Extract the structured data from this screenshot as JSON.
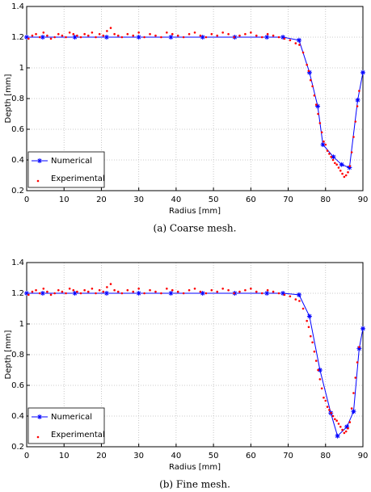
{
  "chart_data": [
    {
      "type": "line",
      "caption": "(a) Coarse mesh.",
      "xlabel": "Radius [mm]",
      "ylabel": "Depth [mm]",
      "xlim": [
        0,
        90
      ],
      "ylim": [
        0.2,
        1.4
      ],
      "xticks": [
        0,
        10,
        20,
        30,
        40,
        50,
        60,
        70,
        80,
        90
      ],
      "yticks": [
        0.2,
        0.4,
        0.6,
        0.8,
        1,
        1.2,
        1.4
      ],
      "grid": true,
      "legend": "lower left",
      "series": [
        {
          "name": "Numerical",
          "color": "#0000ff",
          "x": [
            0,
            4.3,
            12.9,
            21.4,
            30,
            38.6,
            47.1,
            55.7,
            64.3,
            68.6,
            72.9,
            75.7,
            77.9,
            79.3,
            82.1,
            84.3,
            86.4,
            88.6,
            90
          ],
          "values": [
            1.2,
            1.2,
            1.2,
            1.2,
            1.2,
            1.2,
            1.2,
            1.2,
            1.2,
            1.2,
            1.18,
            0.97,
            0.75,
            0.5,
            0.42,
            0.37,
            0.35,
            0.79,
            0.97
          ]
        },
        {
          "name": "Experimental",
          "color": "#ff0000",
          "style": "points",
          "x": [
            0.5,
            1.5,
            2.5,
            3.5,
            4.5,
            5.5,
            6.5,
            7.5,
            8.5,
            9.5,
            10.5,
            11.5,
            12.5,
            13.5,
            14.5,
            15.5,
            16.5,
            17.5,
            18.5,
            19.5,
            20.5,
            21.5,
            22.5,
            23.5,
            24.5,
            25.5,
            27,
            28.5,
            30,
            31.5,
            33,
            34.5,
            36,
            37.5,
            39,
            40.5,
            42,
            43.5,
            45,
            46.5,
            48,
            49.5,
            51,
            52.5,
            54,
            55.5,
            57,
            58.5,
            60,
            61.5,
            63,
            64.5,
            66,
            67.5,
            69,
            70.5,
            72,
            73,
            74,
            75,
            75.5,
            76,
            76.5,
            77,
            77.5,
            78,
            78.5,
            79,
            79.5,
            80,
            80.5,
            81,
            81.5,
            82,
            82.5,
            83,
            83.5,
            84,
            84.5,
            85,
            85.5,
            86,
            86.5,
            87,
            87.5,
            88,
            88.5,
            89
          ],
          "values": [
            1.19,
            1.21,
            1.22,
            1.2,
            1.23,
            1.21,
            1.19,
            1.2,
            1.22,
            1.21,
            1.2,
            1.23,
            1.22,
            1.21,
            1.2,
            1.22,
            1.21,
            1.23,
            1.2,
            1.22,
            1.21,
            1.24,
            1.26,
            1.22,
            1.21,
            1.2,
            1.22,
            1.21,
            1.23,
            1.2,
            1.22,
            1.21,
            1.2,
            1.23,
            1.22,
            1.21,
            1.2,
            1.22,
            1.23,
            1.21,
            1.2,
            1.22,
            1.21,
            1.23,
            1.22,
            1.2,
            1.21,
            1.22,
            1.23,
            1.21,
            1.2,
            1.22,
            1.21,
            1.2,
            1.19,
            1.18,
            1.16,
            1.15,
            1.1,
            1.02,
            0.98,
            0.92,
            0.88,
            0.82,
            0.76,
            0.7,
            0.64,
            0.58,
            0.52,
            0.5,
            0.46,
            0.44,
            0.42,
            0.4,
            0.38,
            0.37,
            0.35,
            0.33,
            0.31,
            0.29,
            0.3,
            0.32,
            0.36,
            0.45,
            0.55,
            0.65,
            0.75,
            0.85
          ]
        }
      ]
    },
    {
      "type": "line",
      "caption": "(b) Fine mesh.",
      "xlabel": "Radius [mm]",
      "ylabel": "Depth [mm]",
      "xlim": [
        0,
        90
      ],
      "ylim": [
        0.2,
        1.4
      ],
      "xticks": [
        0,
        10,
        20,
        30,
        40,
        50,
        60,
        70,
        80,
        90
      ],
      "yticks": [
        0.2,
        0.4,
        0.6,
        0.8,
        1,
        1.2,
        1.4
      ],
      "grid": true,
      "legend": "lower left",
      "series": [
        {
          "name": "Numerical",
          "color": "#0000ff",
          "x": [
            0,
            4.3,
            12.9,
            21.4,
            30,
            38.6,
            47.1,
            55.7,
            64.3,
            68.6,
            72.9,
            75.7,
            78.5,
            81.4,
            83.2,
            85.7,
            87.5,
            89,
            90
          ],
          "values": [
            1.2,
            1.2,
            1.2,
            1.2,
            1.2,
            1.2,
            1.2,
            1.2,
            1.2,
            1.2,
            1.19,
            1.05,
            0.7,
            0.42,
            0.27,
            0.33,
            0.43,
            0.84,
            0.97
          ]
        },
        {
          "name": "Experimental",
          "color": "#ff0000",
          "style": "points",
          "x": [
            0.5,
            1.5,
            2.5,
            3.5,
            4.5,
            5.5,
            6.5,
            7.5,
            8.5,
            9.5,
            10.5,
            11.5,
            12.5,
            13.5,
            14.5,
            15.5,
            16.5,
            17.5,
            18.5,
            19.5,
            20.5,
            21.5,
            22.5,
            23.5,
            24.5,
            25.5,
            27,
            28.5,
            30,
            31.5,
            33,
            34.5,
            36,
            37.5,
            39,
            40.5,
            42,
            43.5,
            45,
            46.5,
            48,
            49.5,
            51,
            52.5,
            54,
            55.5,
            57,
            58.5,
            60,
            61.5,
            63,
            64.5,
            66,
            67.5,
            69,
            70.5,
            72,
            73,
            74,
            75,
            75.5,
            76,
            76.5,
            77,
            77.5,
            78,
            78.5,
            79,
            79.5,
            80,
            80.5,
            81,
            81.5,
            82,
            82.5,
            83,
            83.5,
            84,
            84.5,
            85,
            85.5,
            86,
            86.5,
            87,
            87.5,
            88,
            88.5,
            89
          ],
          "values": [
            1.19,
            1.21,
            1.22,
            1.2,
            1.23,
            1.21,
            1.19,
            1.2,
            1.22,
            1.21,
            1.2,
            1.23,
            1.22,
            1.21,
            1.2,
            1.22,
            1.21,
            1.23,
            1.2,
            1.22,
            1.21,
            1.24,
            1.26,
            1.22,
            1.21,
            1.2,
            1.22,
            1.21,
            1.23,
            1.2,
            1.22,
            1.21,
            1.2,
            1.23,
            1.22,
            1.21,
            1.2,
            1.22,
            1.23,
            1.21,
            1.2,
            1.22,
            1.21,
            1.23,
            1.22,
            1.2,
            1.21,
            1.22,
            1.23,
            1.21,
            1.2,
            1.22,
            1.21,
            1.2,
            1.19,
            1.18,
            1.16,
            1.15,
            1.1,
            1.02,
            0.98,
            0.92,
            0.88,
            0.82,
            0.76,
            0.7,
            0.64,
            0.58,
            0.52,
            0.5,
            0.46,
            0.44,
            0.42,
            0.4,
            0.38,
            0.37,
            0.35,
            0.33,
            0.31,
            0.29,
            0.3,
            0.32,
            0.36,
            0.45,
            0.55,
            0.65,
            0.75,
            0.85
          ]
        }
      ]
    }
  ]
}
